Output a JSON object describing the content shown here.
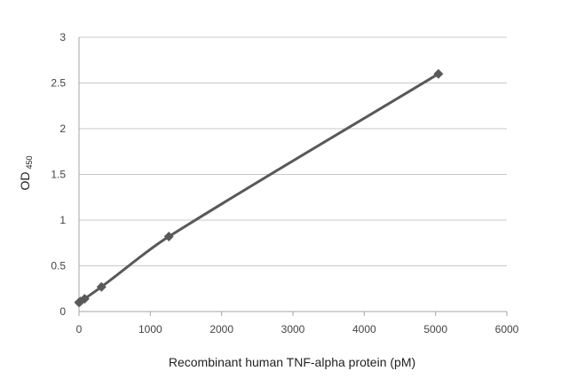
{
  "chart_data": {
    "type": "scatter",
    "title": "",
    "xlabel": "Recombinant human TNF-alpha protein (pM)",
    "ylabel": "OD",
    "ylabel_subscript": "450",
    "xlim": [
      0,
      6000
    ],
    "ylim": [
      0,
      3
    ],
    "x_ticks": [
      "0",
      "1000",
      "2000",
      "3000",
      "4000",
      "5000",
      "6000"
    ],
    "y_ticks": [
      "0",
      "0.5",
      "1",
      "1.5",
      "2",
      "2.5",
      "3"
    ],
    "grid": "horizontal",
    "series": [
      {
        "x": [
          0,
          20,
          79,
          315,
          1260,
          5040
        ],
        "y": [
          0.1,
          0.11,
          0.14,
          0.27,
          0.82,
          2.6
        ],
        "marker": "diamond",
        "line": "smooth",
        "color": "#595959"
      }
    ]
  }
}
